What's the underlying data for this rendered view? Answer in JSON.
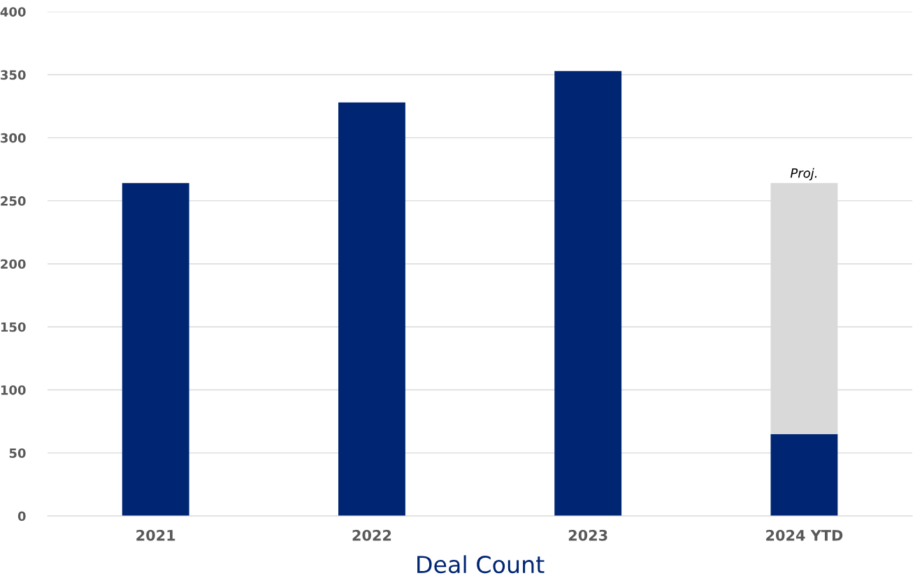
{
  "chart_data": {
    "type": "bar",
    "stacked": true,
    "xlabel": "Deal Count",
    "categories": [
      "2021",
      "2022",
      "2023",
      "2024 YTD"
    ],
    "series": [
      {
        "color": "#002673",
        "values": [
          264,
          328,
          353,
          65
        ]
      },
      {
        "color": "#d9d9d9",
        "values": [
          null,
          null,
          null,
          199
        ]
      }
    ],
    "ylim": [
      0,
      400
    ],
    "yticks": [
      0,
      50,
      100,
      150,
      200,
      250,
      300,
      350,
      400
    ],
    "grid": "y",
    "annotations": [
      {
        "text": "Proj.",
        "x": "2024 YTD",
        "y": 264
      }
    ]
  }
}
